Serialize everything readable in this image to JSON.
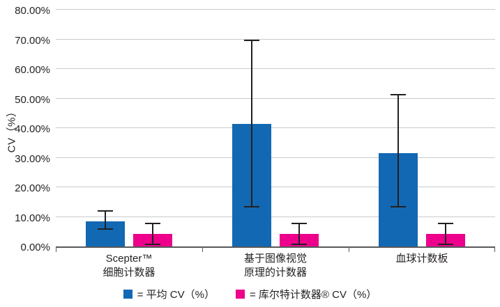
{
  "chart_data": {
    "type": "bar",
    "title": "",
    "xlabel": "",
    "ylabel": "CV（%）",
    "ylim": [
      0,
      80
    ],
    "ytick_step": 10,
    "ytick_labels": [
      "0.00%",
      "10.00%",
      "20.00%",
      "30.00%",
      "40.00%",
      "50.00%",
      "60.00%",
      "70.00%",
      "80.00%"
    ],
    "categories": [
      [
        "Scepter™",
        "细胞计数器"
      ],
      [
        "基于图像视觉",
        "原理的计数器"
      ],
      [
        "血球计数板"
      ]
    ],
    "series": [
      {
        "name": "平均 CV（%）",
        "color": "#1268b3",
        "values": [
          8.5,
          41.5,
          31.5
        ],
        "error_low": [
          5.6,
          13.2,
          13.2
        ],
        "error_high": [
          12.2,
          69.9,
          51.5
        ]
      },
      {
        "name": "库尔特计数器® CV（%）",
        "color": "#ec008c",
        "values": [
          4.2,
          4.2,
          4.2
        ],
        "error_low": [
          0.5,
          0.5,
          0.5
        ],
        "error_high": [
          8.0,
          8.0,
          8.0
        ]
      }
    ],
    "legend": [
      {
        "color": "#1268b3",
        "label": "= 平均 CV（%）"
      },
      {
        "color": "#ec008c",
        "label": "= 库尔特计数器® CV（%）"
      }
    ],
    "legend_position": "bottom",
    "grid": true
  }
}
